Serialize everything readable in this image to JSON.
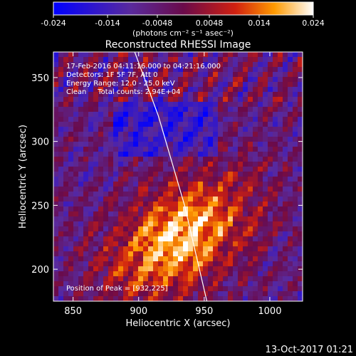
{
  "chart_data": {
    "type": "heatmap",
    "title": "Reconstructed RHESSI Image",
    "xlabel": "Heliocentric X (arcsec)",
    "ylabel": "Heliocentric Y (arcsec)",
    "xlim": [
      835,
      1025
    ],
    "ylim": [
      175,
      370
    ],
    "xticks": [
      850,
      900,
      950,
      1000
    ],
    "yticks": [
      200,
      250,
      300,
      350
    ],
    "colorbar": {
      "range": [
        -0.024,
        0.024
      ],
      "ticks": [
        "-0.024",
        "-0.014",
        "-0.0048",
        "0.0048",
        "0.014",
        "0.024"
      ],
      "units_label": "(photons cm⁻² s⁻¹ asec⁻²)"
    },
    "annotations": {
      "time": "17-Feb-2016 04:11:16.000 to 04:21:16.000",
      "detectors": "Detectors: 1F 5F 7F, Att 0",
      "energy": "Energy Range: 12.0 - 25.0 keV",
      "method": "Clean     Total counts: 2.94E+04",
      "peak": "Position of Peak = [932,225]"
    },
    "peak": {
      "x": 932,
      "y": 225,
      "value": 0.024
    },
    "limb_curve": {
      "x": [
        897,
        915,
        935,
        952
      ],
      "y": [
        370,
        320,
        250,
        175
      ]
    },
    "footer_date": "13-Oct-2017 01:21"
  }
}
